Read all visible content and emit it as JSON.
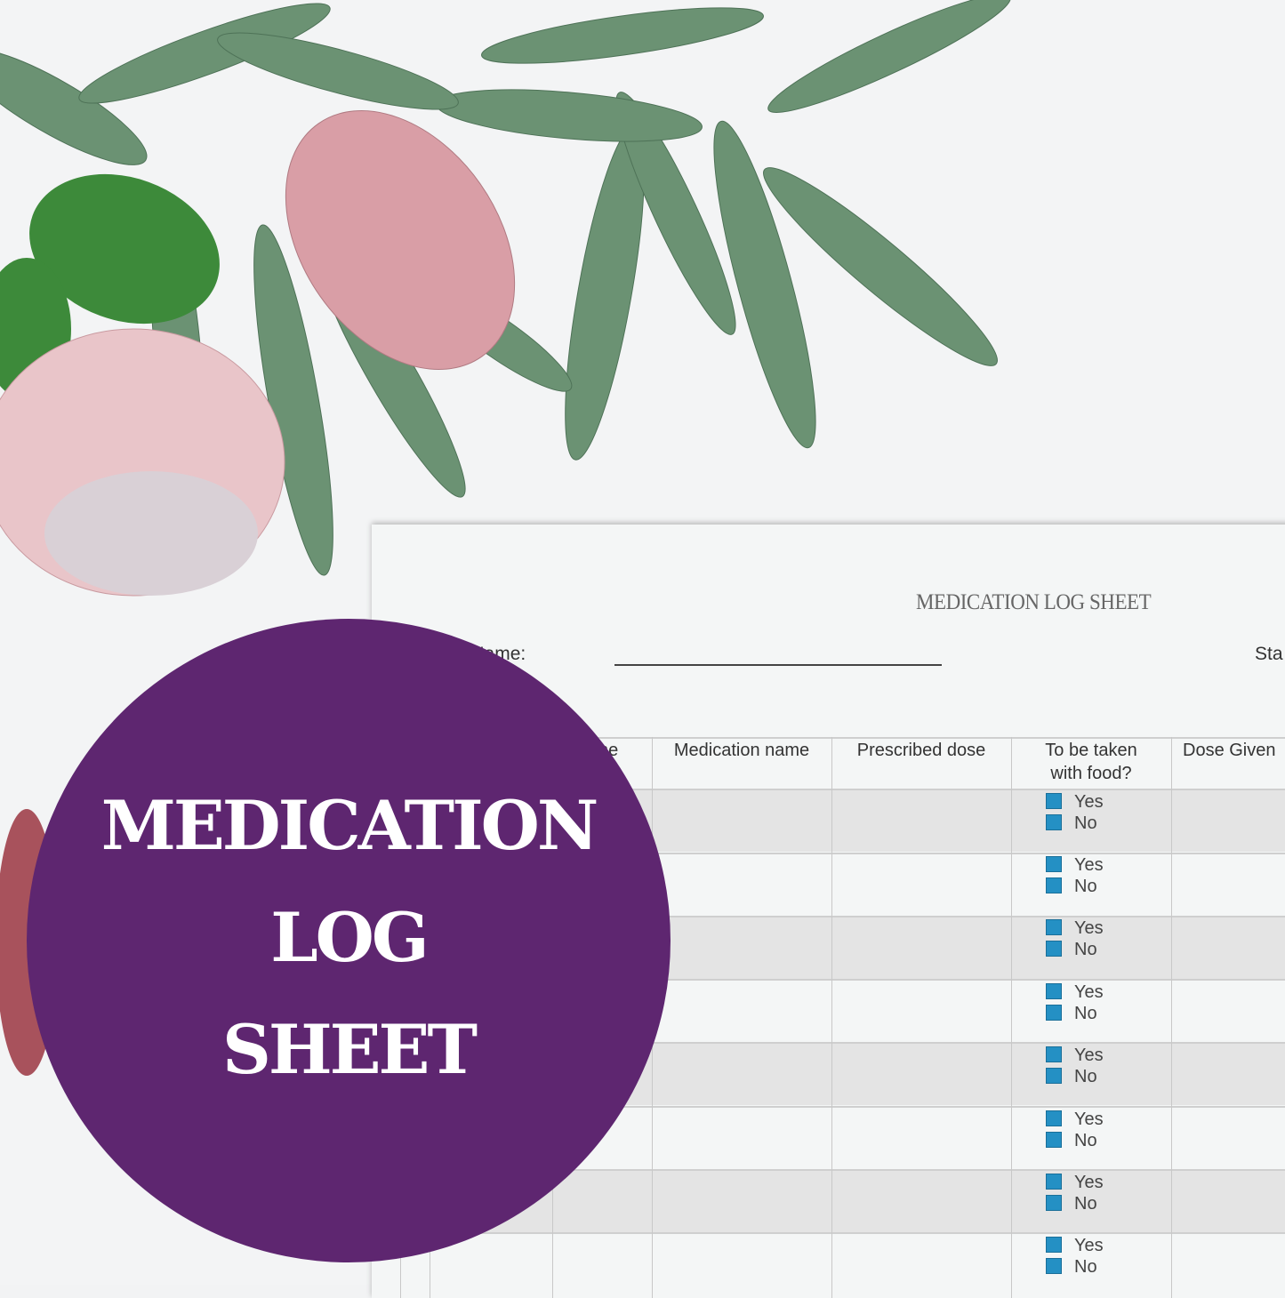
{
  "colors": {
    "badge": "#5e2670",
    "checkbox": "#2490c4",
    "leaf": "#5f8a6a",
    "protea": "#dba3ab"
  },
  "badge": {
    "lines": [
      "MEDICATION",
      "LOG",
      "SHEET"
    ]
  },
  "sheet": {
    "title": "MEDICATION LOG SHEET",
    "participant_label": "ipant Name:",
    "right_label": "Sta",
    "headers": [
      "ne",
      "Medication name",
      "Prescribed dose",
      "To be taken with food?",
      "Dose Given"
    ],
    "options": {
      "yes": "Yes",
      "no": "No"
    }
  }
}
